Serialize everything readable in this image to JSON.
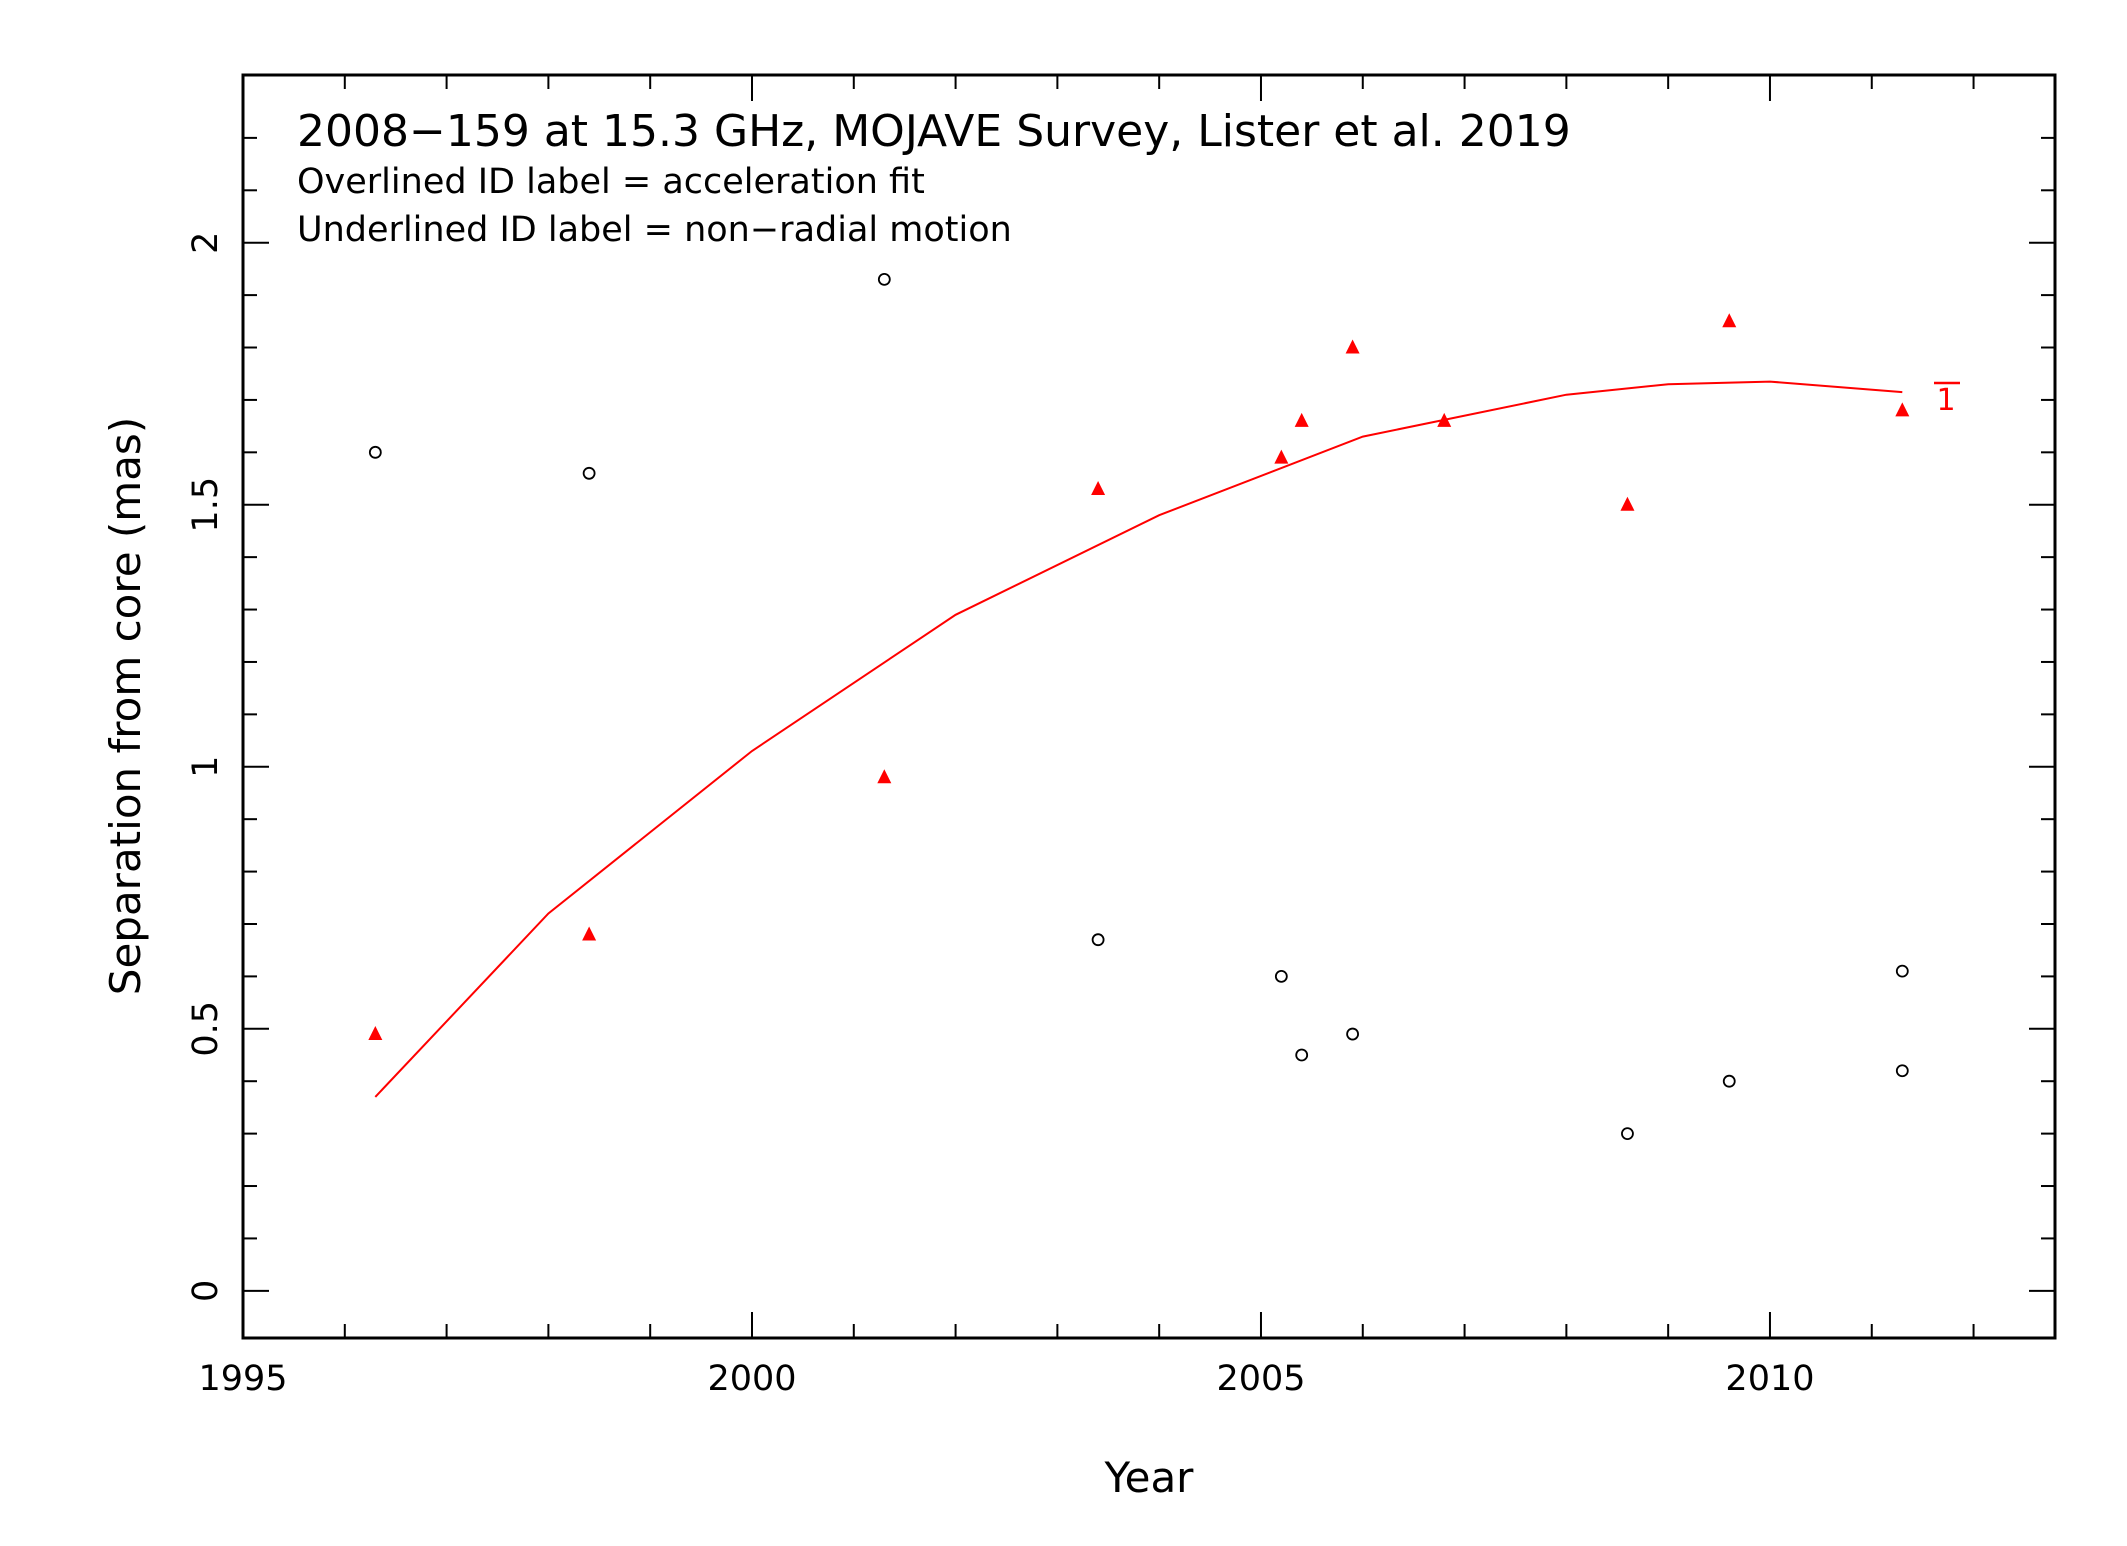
{
  "chart_data": {
    "type": "scatter",
    "title": "2008−159 at 15.3 GHz, MOJAVE Survey, Lister et al. 2019",
    "subtitles": [
      "Overlined ID label = acceleration fit",
      "Underlined ID label = non−radial motion"
    ],
    "xlabel": "Year",
    "ylabel": "Separation from core (mas)",
    "xlim": [
      1995.0,
      2012.8
    ],
    "ylim": [
      -0.09,
      2.32
    ],
    "xticks_major": [
      1995,
      2000,
      2005,
      2010
    ],
    "xtick_labels": [
      "1995",
      "2000",
      "2005",
      "2010"
    ],
    "yticks_major": [
      0,
      0.5,
      1,
      1.5,
      2
    ],
    "ytick_labels": [
      "0",
      "0.5",
      "1",
      "1.5",
      "2"
    ],
    "grid": false,
    "series": [
      {
        "marker": "open-circle",
        "color": "#000000",
        "points": [
          [
            1996.3,
            1.6
          ],
          [
            1998.4,
            1.56
          ],
          [
            2001.3,
            1.93
          ],
          [
            2003.4,
            0.67
          ],
          [
            2005.2,
            0.6
          ],
          [
            2005.4,
            0.45
          ],
          [
            2005.9,
            0.49
          ],
          [
            2008.6,
            0.3
          ],
          [
            2009.6,
            0.4
          ],
          [
            2011.3,
            0.61
          ],
          [
            2011.3,
            0.42
          ]
        ]
      },
      {
        "name": "1",
        "marker": "filled-triangle",
        "color": "#ff0000",
        "points": [
          [
            1996.3,
            0.49
          ],
          [
            1998.4,
            0.68
          ],
          [
            2001.3,
            0.98
          ],
          [
            2003.4,
            1.53
          ],
          [
            2005.2,
            1.59
          ],
          [
            2005.4,
            1.66
          ],
          [
            2005.9,
            1.8
          ],
          [
            2006.8,
            1.66
          ],
          [
            2008.6,
            1.5
          ],
          [
            2009.6,
            1.85
          ],
          [
            2011.3,
            1.68
          ]
        ],
        "fit": {
          "type": "acceleration",
          "color": "#ff0000",
          "x": [
            1996.3,
            1998.0,
            2000.0,
            2002.0,
            2004.0,
            2006.0,
            2008.0,
            2009.0,
            2010.0,
            2011.3
          ],
          "y": [
            0.37,
            0.72,
            1.03,
            1.29,
            1.48,
            1.63,
            1.71,
            1.73,
            1.735,
            1.715
          ]
        },
        "id_label": "1",
        "id_label_decoration": "overline"
      }
    ]
  }
}
